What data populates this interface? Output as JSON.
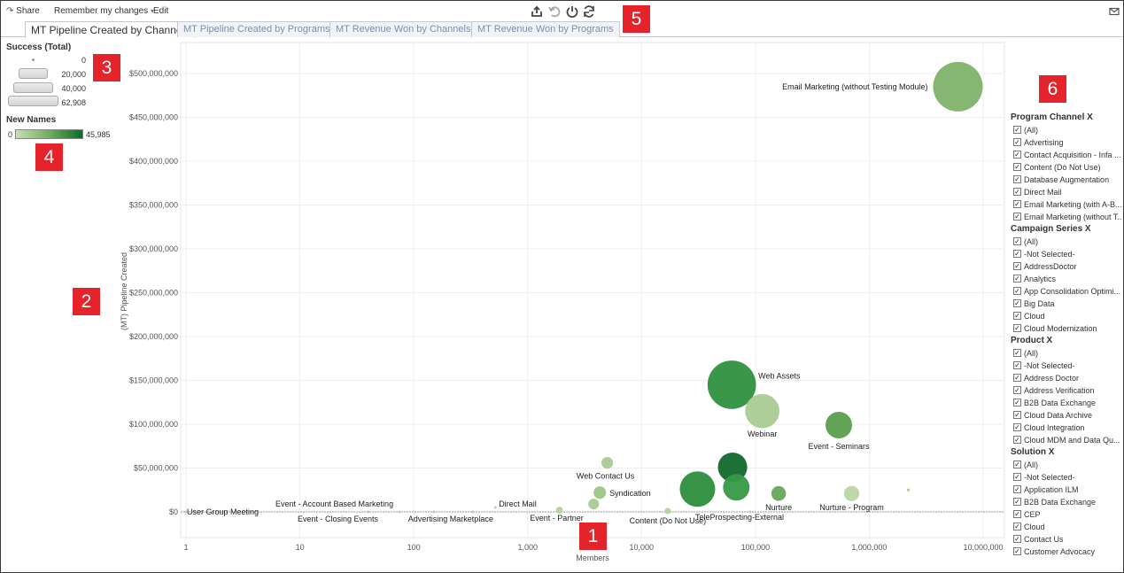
{
  "toolbar": {
    "share_label": "Share",
    "remember_label": "Remember my changes",
    "edit_label": "Edit"
  },
  "tabs": [
    {
      "label": "MT Pipeline Created by Channels",
      "active": true
    },
    {
      "label": "MT Pipeline Created by Programs",
      "active": false
    },
    {
      "label": "MT Revenue Won by Channels",
      "active": false
    },
    {
      "label": "MT Revenue Won by Programs",
      "active": false
    }
  ],
  "size_legend": {
    "title": "Success (Total)",
    "values": [
      "0",
      "20,000",
      "40,000",
      "62,908"
    ]
  },
  "color_legend": {
    "title": "New Names",
    "min": "0",
    "max": "45,985",
    "colors": [
      "#c9deb3",
      "#6fae5c",
      "#0d6a2a"
    ]
  },
  "callouts": [
    "1",
    "2",
    "3",
    "4",
    "5",
    "6"
  ],
  "chart_data": {
    "type": "scatter",
    "xlabel": "Members",
    "ylabel": "(MT) Pipeline Created",
    "xscale": "log",
    "xlim": [
      1,
      10000000
    ],
    "ylim": [
      -30000000,
      530000000
    ],
    "x_ticks": [
      "1",
      "10",
      "100",
      "1,000",
      "10,000",
      "100,000",
      "1,000,000",
      "10,000,000"
    ],
    "y_ticks": [
      "$0",
      "$50,000,000",
      "$100,000,000",
      "$150,000,000",
      "$200,000,000",
      "$250,000,000",
      "$300,000,000",
      "$350,000,000",
      "$400,000,000",
      "$450,000,000",
      "$500,000,000"
    ],
    "grid": true,
    "points": [
      {
        "label": "Email Marketing (without Testing Module)",
        "x": 6000000,
        "y": 485000000,
        "success": 62908,
        "new_names": 14000,
        "color": "#7fb36a"
      },
      {
        "label": "Web Assets",
        "x": 62000,
        "y": 145000000,
        "success": 60000,
        "new_names": 32000,
        "color": "#2f9140"
      },
      {
        "label": "Webinar",
        "x": 115000,
        "y": 115000000,
        "success": 30000,
        "new_names": 4000,
        "color": "#a9cb92"
      },
      {
        "label": "Event - Seminars",
        "x": 540000,
        "y": 99000000,
        "success": 18000,
        "new_names": 20000,
        "color": "#5a9e4d"
      },
      {
        "label": "",
        "x": 63000,
        "y": 51000000,
        "success": 22000,
        "new_names": 45985,
        "color": "#11692b"
      },
      {
        "label": "",
        "x": 31000,
        "y": 26000000,
        "success": 32000,
        "new_names": 35000,
        "color": "#2c8d3b"
      },
      {
        "label": "",
        "x": 68000,
        "y": 28000000,
        "success": 18000,
        "new_names": 34000,
        "color": "#359a45"
      },
      {
        "label": "Web Contact Us",
        "x": 5000,
        "y": 56000000,
        "success": 3500,
        "new_names": 4000,
        "color": "#a9cb92"
      },
      {
        "label": "Syndication",
        "x": 4300,
        "y": 22000000,
        "success": 4000,
        "new_names": 5000,
        "color": "#9dc586"
      },
      {
        "label": "",
        "x": 3800,
        "y": 9000000,
        "success": 3000,
        "new_names": 4000,
        "color": "#a9cb92"
      },
      {
        "label": "Nurture",
        "x": 160000,
        "y": 21000000,
        "success": 5500,
        "new_names": 16000,
        "color": "#66a858"
      },
      {
        "label": "Nurture - Program",
        "x": 700000,
        "y": 21000000,
        "success": 6000,
        "new_names": 2000,
        "color": "#bcd6a5"
      },
      {
        "label": "",
        "x": 2200000,
        "y": 25000000,
        "success": 200,
        "new_names": 4000,
        "color": "#a9cb92"
      },
      {
        "label": "Event - Partner",
        "x": 1900,
        "y": 2000000,
        "success": 1200,
        "new_names": 3000,
        "color": "#b3d19b"
      },
      {
        "label": "Content (Do Not Use)",
        "x": 17000,
        "y": 1000000,
        "success": 1000,
        "new_names": 3000,
        "color": "#b3d19b"
      },
      {
        "label": "TeleProspecting-External",
        "x": 90000,
        "y": 0,
        "success": 150,
        "new_names": 3000,
        "color": "#b3d19b"
      },
      {
        "label": "Direct Mail",
        "x": 520,
        "y": 5000000,
        "success": 60,
        "new_names": 3000,
        "color": "#b3d19b"
      },
      {
        "label": "Advertising Marketplace",
        "x": 330,
        "y": 0,
        "success": 80,
        "new_names": 3000,
        "color": "#b3d19b"
      },
      {
        "label": "",
        "x": 150,
        "y": 0,
        "success": 40,
        "new_names": 3000,
        "color": "#b3d19b"
      },
      {
        "label": "Event - Account Based Marketing",
        "x": 75,
        "y": 0,
        "success": 30,
        "new_names": 3000,
        "color": "#b3d19b"
      },
      {
        "label": "Event - Closing Events",
        "x": 40,
        "y": 0,
        "success": 10,
        "new_names": 3000,
        "color": "#b3d19b"
      },
      {
        "label": "User Group Meeting",
        "x": 1,
        "y": 0,
        "success": 10,
        "new_names": 3000,
        "color": "#b3d19b"
      }
    ]
  },
  "filters": [
    {
      "title": "Program Channel X",
      "items": [
        "(All)",
        "Advertising",
        "Contact Acquisition - Infa ...",
        "Content (Do Not Use)",
        "Database Augmentation",
        "Direct Mail",
        "Email Marketing (with A-B...",
        "Email Marketing (without T..."
      ]
    },
    {
      "title": "Campaign Series X",
      "items": [
        "(All)",
        "-Not Selected-",
        "AddressDoctor",
        "Analytics",
        "App Consolidation Optimi...",
        "Big Data",
        "Cloud",
        "Cloud Modernization"
      ]
    },
    {
      "title": "Product X",
      "items": [
        "(All)",
        "-Not Selected-",
        "Address Doctor",
        "Address Verification",
        "B2B Data Exchange",
        "Cloud Data Archive",
        "Cloud Integration",
        "Cloud MDM and Data Qu..."
      ]
    },
    {
      "title": "Solution X",
      "items": [
        "(All)",
        "-Not Selected-",
        "Application ILM",
        "B2B Data Exchange",
        "CEP",
        "Cloud",
        "Contact Us",
        "Customer Advocacy"
      ]
    }
  ]
}
